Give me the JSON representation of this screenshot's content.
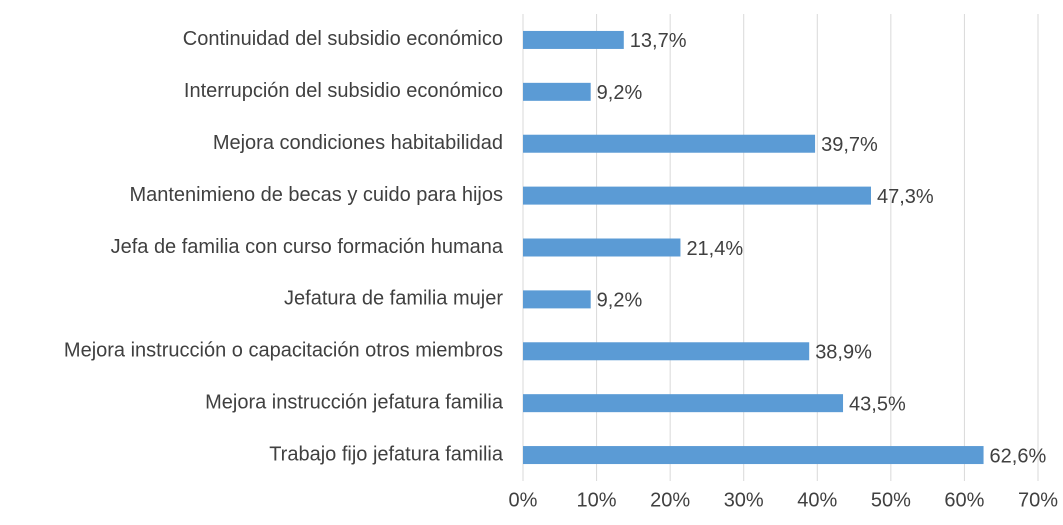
{
  "chart_data": {
    "type": "barh",
    "categories": [
      "Continuidad del subsidio económico",
      "Interrupción del subsidio económico",
      "Mejora condiciones habitabilidad",
      "Mantenimieno de becas y cuido para hijos",
      "Jefa de familia con curso formación humana",
      "Jefatura de familia mujer",
      "Mejora instrucción o capacitación otros miembros",
      "Mejora instrucción jefatura familia",
      "Trabajo fijo jefatura familia"
    ],
    "values": [
      13.7,
      9.2,
      39.7,
      47.3,
      21.4,
      9.2,
      38.9,
      43.5,
      62.6
    ],
    "value_labels": [
      "13,7%",
      "9,2%",
      "39,7%",
      "47,3%",
      "21,4%",
      "9,2%",
      "38,9%",
      "43,5%",
      "62,6%"
    ],
    "color": "#5b9bd5",
    "xlim": [
      0,
      70
    ],
    "xticks": [
      {
        "value": 0,
        "label": "0%"
      },
      {
        "value": 10,
        "label": "10%"
      },
      {
        "value": 20,
        "label": "20%"
      },
      {
        "value": 30,
        "label": "30%"
      },
      {
        "value": 40,
        "label": "40%"
      },
      {
        "value": 50,
        "label": "50%"
      },
      {
        "value": 60,
        "label": "60%"
      },
      {
        "value": 70,
        "label": "70%"
      }
    ],
    "grid": true
  }
}
